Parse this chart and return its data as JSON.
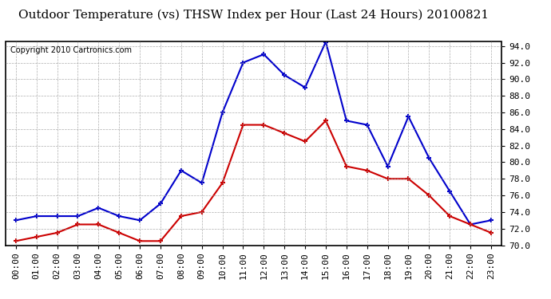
{
  "title": "Outdoor Temperature (vs) THSW Index per Hour (Last 24 Hours) 20100821",
  "copyright": "Copyright 2010 Cartronics.com",
  "hours": [
    "00:00",
    "01:00",
    "02:00",
    "03:00",
    "04:00",
    "05:00",
    "06:00",
    "07:00",
    "08:00",
    "09:00",
    "10:00",
    "11:00",
    "12:00",
    "13:00",
    "14:00",
    "15:00",
    "16:00",
    "17:00",
    "18:00",
    "19:00",
    "20:00",
    "21:00",
    "22:00",
    "23:00"
  ],
  "blue_data": [
    73.0,
    73.5,
    73.5,
    73.5,
    74.5,
    73.5,
    73.0,
    75.0,
    79.0,
    77.5,
    86.0,
    92.0,
    93.0,
    90.5,
    89.0,
    94.5,
    85.0,
    84.5,
    79.5,
    85.5,
    80.5,
    76.5,
    72.5,
    73.0
  ],
  "red_data": [
    70.5,
    71.0,
    71.5,
    72.5,
    72.5,
    71.5,
    70.5,
    70.5,
    73.5,
    74.0,
    77.5,
    84.5,
    84.5,
    83.5,
    82.5,
    85.0,
    79.5,
    79.0,
    78.0,
    78.0,
    76.0,
    73.5,
    72.5,
    71.5
  ],
  "ylim": [
    70.0,
    94.5
  ],
  "ytick_min": 70.0,
  "ytick_max": 94.0,
  "ytick_step": 2.0,
  "blue_color": "#0000cc",
  "red_color": "#cc0000",
  "bg_color": "#ffffff",
  "grid_color": "#999999",
  "title_fontsize": 11,
  "copyright_fontsize": 7,
  "tick_fontsize": 8,
  "marker_size": 4
}
